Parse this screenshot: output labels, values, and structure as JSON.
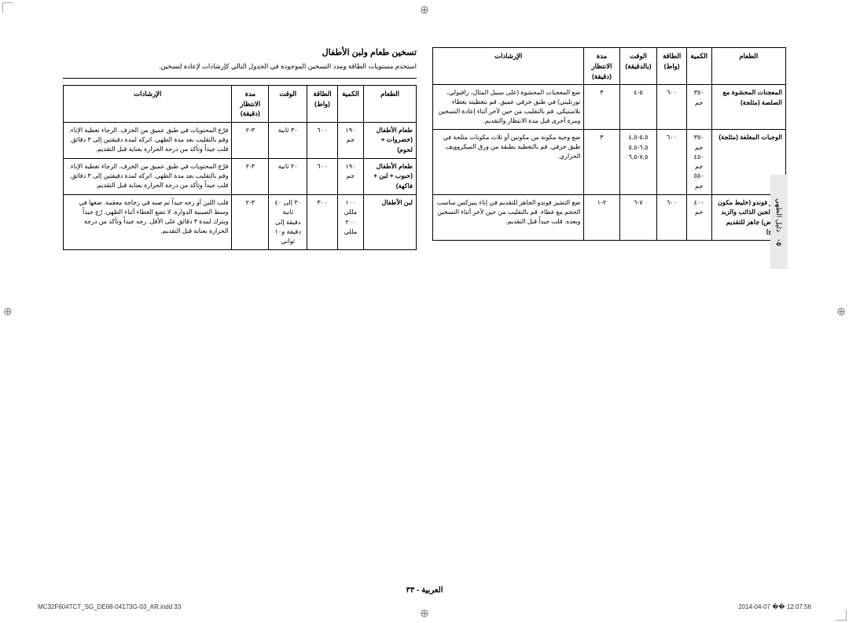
{
  "tab": {
    "num": "٠٥",
    "label": "دليل الطهي"
  },
  "page_number": "العربية - ٣٣",
  "footer_left": "MC32F604TCT_SG_DE68-04173G-03_AR.indd   33",
  "footer_right": "2014-04-07   �� 12:07:56",
  "reg_glyph": "⊕",
  "right_table": {
    "headers": [
      "الطعام",
      "الكمية",
      "الطاقة (واط)",
      "الوقت (بالدقيقة)",
      "مدة الانتظار (دقيقة)",
      "الإرشادات"
    ],
    "rows": [
      {
        "food": "المعجنات المحشوة مع الصلصة (مثلجة)",
        "qty": "٣٥٠ جم",
        "power": "٦٠٠",
        "time": "٥-٤",
        "stand": "٣",
        "instr": "ضع المعجنات المحشوة (على سبيل المثال، رافيولي، تورتليني) في طبق خزفي عميق. قم بتغطيته بغطاء بلاستيكي. قم بالتقليب من حين لآخر أثناء إعادة التسخين ومرة أخرى قبل مدة الانتظار والتقديم."
      },
      {
        "food": "الوجبات المغلفة (مثلجة)",
        "qty": "٣٥٠ جم\n٤٥٠ جم\n٥٥٠ جم",
        "power": "٦٠٠",
        "time": "٥,٥-٤,٥\n٦,٥-٥,٥\n٧,٥-٦,٥",
        "stand": "٣",
        "instr": "ضع وجبة مكونة من مكونين أو ثلاث مكونات مثلجة في طبق خزفي. قم بالتغطية بطبقة من ورق الميكروويف الحراري."
      },
      {
        "food": "تشيز فوندو (خليط مكون من الجبن الذائب والزبد والبيض) جاهز للتقديم (مثلج)",
        "qty": "٤٠٠ جم",
        "power": "٦٠٠",
        "time": "٧-٦",
        "stand": "٢-١",
        "instr": "ضع التشيز فوندو الجاهز للتقديم في إناء ببيركس مناسب الحجم مع غطاء. قم بالتقليب من حين لآخر أثناء التسخين وبعده. قلب جيداً قبل التقديم."
      }
    ]
  },
  "left_section": {
    "title": "تسخين طعام ولبن الأطفال",
    "intro": "استخدم مستويات الطاقة ومدد التسخين الموجودة في الجدول التالي كإرشادات لإعادة لتسخين.",
    "headers": [
      "الطعام",
      "الكمية",
      "الطاقة (واط)",
      "الوقت",
      "مدة الانتظار (دقيقة)",
      "الإرشادات"
    ],
    "rows": [
      {
        "food": "طعام الأطفال (خضروات + لحوم)",
        "qty": "١٩٠ جم",
        "power": "٦٠٠",
        "time": "٣٠ ثانية",
        "stand": "٣-٢",
        "instr": "فرّغ المحتويات في طبق عميق من الخزف. الرجاء تغطية الإناء. وقم بالتقليب بعد مدة الطهي. اتركه لمدة دقيقتين إلى ٣ دقائق. قلب جيداً وتأكد من درجة الحرارة بعناية قبل التقديم."
      },
      {
        "food": "طعام الأطفال (حبوب + لبن + فاكهة)",
        "qty": "١٩٠ جم",
        "power": "٦٠٠",
        "time": "٢٠ ثانية",
        "stand": "٣-٢",
        "instr": "فرّغ المحتويات في طبق عميق من الخزف. الرجاء تغطية الإناء. وقم بالتقليب بعد مدة الطهي. اتركه لمدة دقيقتين إلى ٣ دقائق. قلب جيداً وتأكد من درجة الحرارة بعناية قبل التقديم."
      },
      {
        "food": "لبن الأطفال",
        "qty": "١٠٠ مللي\n٢٠٠ مللي",
        "power": "٣٠٠",
        "time": "٣٠ إلى ٤٠ ثانية\nدقيقة إلى دقيقة و١٠ ثواني",
        "stand": "٣-٢",
        "instr": "قلب اللبن أو رجه جيداً ثم صبه في زجاجة معقمة. ضعها في وسط الصينية الدوارة. لا تضع الغطاء أثناء الطهي. رُج جيداً ويترك لمدة ٣ دقائق على الأقل. رجه جيداً وتأكد من درجة الحرارة بعناية قبل التقديم."
      }
    ]
  }
}
